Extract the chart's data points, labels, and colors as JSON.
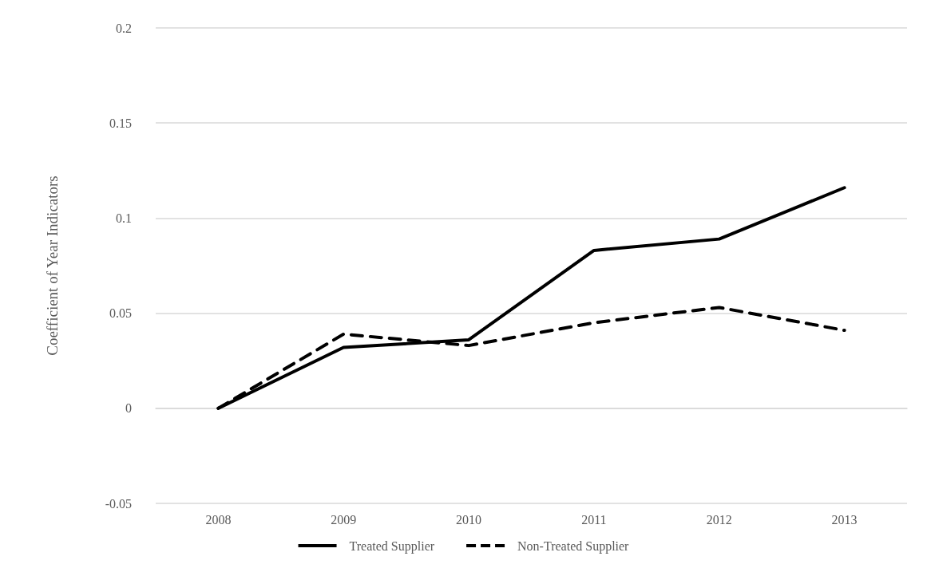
{
  "chart_data": {
    "type": "line",
    "ylabel": "Coefficient of Year Indicators",
    "categories": [
      "2008",
      "2009",
      "2010",
      "2011",
      "2012",
      "2013"
    ],
    "series": [
      {
        "name": "Treated Supplier",
        "color": "#000000",
        "values": [
          0,
          0.032,
          0.036,
          0.083,
          0.089,
          0.116
        ],
        "line_style": "solid"
      },
      {
        "name": "Non-Treated Supplier",
        "color": "#000000",
        "values": [
          0,
          0.039,
          0.033,
          0.045,
          0.053,
          0.041
        ],
        "line_style": "dashed"
      }
    ],
    "ylim": [
      -0.05,
      0.2
    ],
    "yticks": [
      -0.05,
      0,
      0.05,
      0.1,
      0.15,
      0.2
    ],
    "grid": "y",
    "legend": "bottom",
    "marker": "none"
  }
}
